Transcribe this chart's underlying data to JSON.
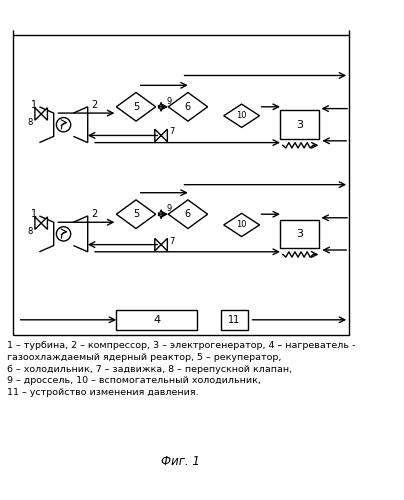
{
  "bg_color": "#ffffff",
  "line_color": "#000000",
  "fig_width": 4.04,
  "fig_height": 5.0,
  "dpi": 100,
  "title": "Фиг. 1",
  "legend_lines": [
    "1 – турбина, 2 – компрессор, 3 – электрогенератор, 4 – нагреватель -",
    "газоохлаждаемый ядерный реактор, 5 – рекуператор,",
    "6 – холодильник, 7 – задвижка, 8 – перепускной клапан,",
    "9 – дроссель, 10 – вспомогательный холодильник,",
    "11 – устройство изменения давления."
  ]
}
